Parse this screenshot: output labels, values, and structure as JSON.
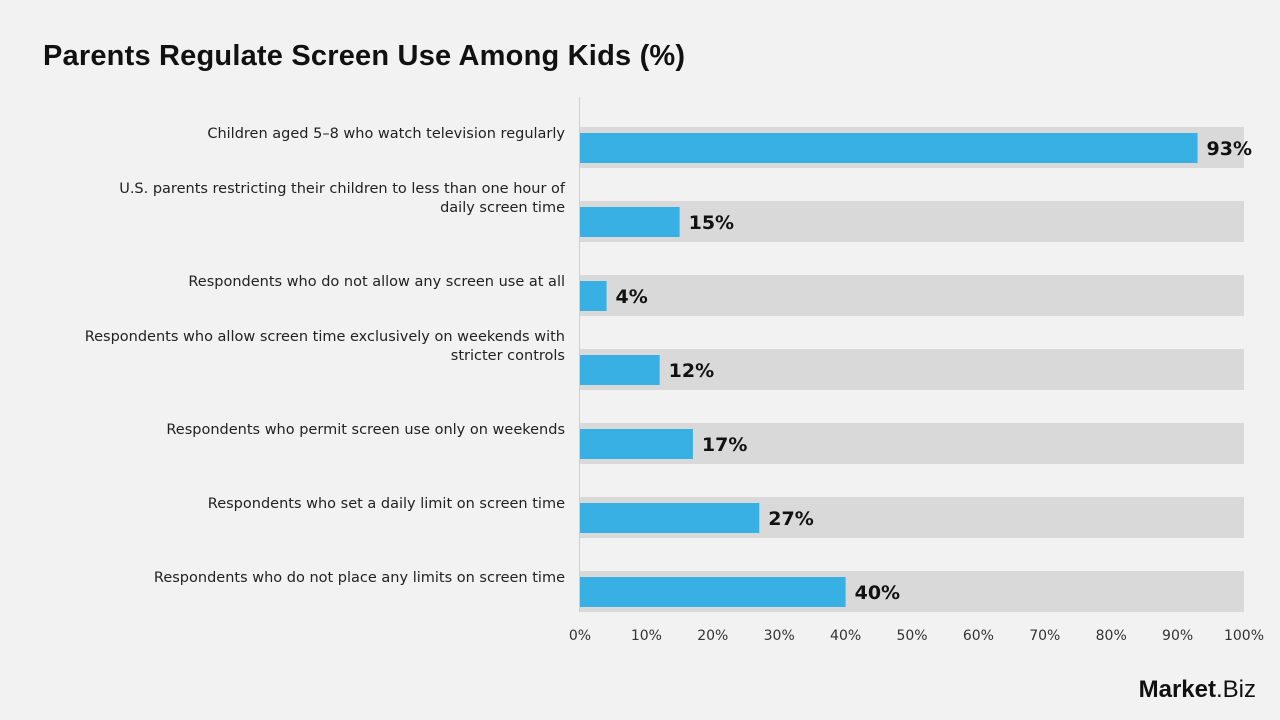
{
  "chart_data": {
    "type": "bar",
    "orientation": "horizontal",
    "title": "Parents Regulate Screen Use Among Kids  (%)",
    "categories": [
      "Children aged 5–8 who watch television regularly",
      "U.S. parents restricting their children to less than one hour of daily screen time",
      "Respondents who do not allow any screen use at all",
      "Respondents who allow screen time exclusively on weekends with stricter controls",
      "Respondents who permit screen use only on weekends",
      "Respondents who set a daily limit on screen time",
      "Respondents who do not place any limits on screen time"
    ],
    "values": [
      93,
      15,
      4,
      12,
      17,
      27,
      40
    ],
    "data_labels": [
      "93%",
      "15%",
      "4%",
      "12%",
      "17%",
      "27%",
      "40%"
    ],
    "xlim": [
      0,
      100
    ],
    "xticks": [
      "0%",
      "10%",
      "20%",
      "30%",
      "40%",
      "50%",
      "60%",
      "70%",
      "80%",
      "90%",
      "100%"
    ],
    "grid": false,
    "colors": {
      "bar": "#38b0e4",
      "track": "#d9d9d9",
      "background": "#f2f2f2"
    }
  },
  "logo": {
    "brand": "Market",
    "suffix": ".Biz"
  }
}
